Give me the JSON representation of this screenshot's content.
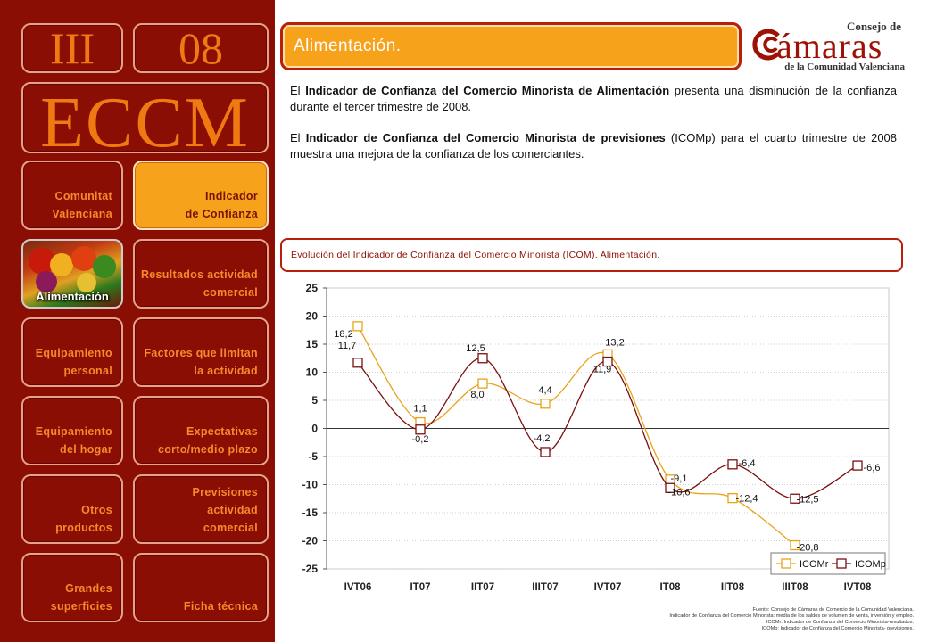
{
  "sidebar": {
    "section_code": "III",
    "page_number": "08",
    "title": "ECCM",
    "photo_label": "Alimentación",
    "nav": {
      "comunitat": "Comunitat\nValenciana",
      "indicador": "Indicador\nde Confianza",
      "resultados": "Resultados actividad\ncomercial",
      "equip_personal": "Equipamiento\npersonal",
      "factores": "Factores que limitan\nla actividad",
      "equip_hogar": "Equipamiento\ndel hogar",
      "expectativas": "Expectativas\ncorto/medio plazo",
      "otros": "Otros\nproductos",
      "previsiones": "Previsiones actividad\ncomercial",
      "grandes": "Grandes\nsuperficies",
      "ficha": "Ficha técnica"
    }
  },
  "header": {
    "title": "Alimentación."
  },
  "logo": {
    "line1": "Consejo de",
    "main": "ámaras",
    "line2": "de la Comunidad Valenciana",
    "colors": {
      "primary": "#9e1206"
    }
  },
  "paragraphs": {
    "p1_pre": "El ",
    "p1_bold": "Indicador de Confianza del Comercio Minorista de Alimentación",
    "p1_post": " presenta una disminución de la confianza durante el tercer trimestre de 2008.",
    "p2_pre": "El ",
    "p2_bold": "Indicador de Confianza del Comercio Minorista de previsiones",
    "p2_post": " (ICOMp) para el cuarto trimestre de 2008 muestra una mejora de la confianza de los comerciantes."
  },
  "caption": "Evolución del Indicador de Confianza del Comercio Minorista (ICOM). Alimentación.",
  "sources": [
    "Fuente: Consejo de Cámaras de Comercio de la Comunidad Valenciana.",
    "Indicador de Confianza del Comercio Minorista: media de los saldos de volumen de venta, inversión y empleo.",
    "ICOMr: Indicador de Confianza del Comercio Minorista-resultados.",
    "ICOMp: Indicador de Confianza del Comercio Minorista- previsiones."
  ],
  "chart_data": {
    "type": "line",
    "categories": [
      "IVT06",
      "IT07",
      "IIT07",
      "IIIT07",
      "IVT07",
      "IT08",
      "IIT08",
      "IIIT08",
      "IVT08"
    ],
    "ylim": [
      -25,
      25
    ],
    "yticks": [
      25,
      20,
      15,
      10,
      5,
      0,
      -5,
      -10,
      -15,
      -20,
      -25
    ],
    "grid": true,
    "legend_position": "bottom-right",
    "series": [
      {
        "name": "ICOMr",
        "color": "#e8a317",
        "values": [
          18.2,
          1.1,
          8.0,
          4.4,
          13.2,
          -9.1,
          -12.4,
          -20.8,
          null
        ],
        "labels": [
          "18,2",
          "1,1",
          "8,0",
          "4,4",
          "13,2",
          "-9,1",
          "-12,4",
          "-20,8",
          ""
        ]
      },
      {
        "name": "ICOMp",
        "color": "#7a1010",
        "values": [
          11.7,
          -0.2,
          12.5,
          -4.2,
          11.9,
          -10.6,
          -6.4,
          -12.5,
          -6.6
        ],
        "labels": [
          "11,7",
          "-0,2",
          "12,5",
          "-4,2",
          "11,9",
          "-10,6",
          "-6,4",
          "-12,5",
          "-6,6"
        ]
      }
    ]
  }
}
